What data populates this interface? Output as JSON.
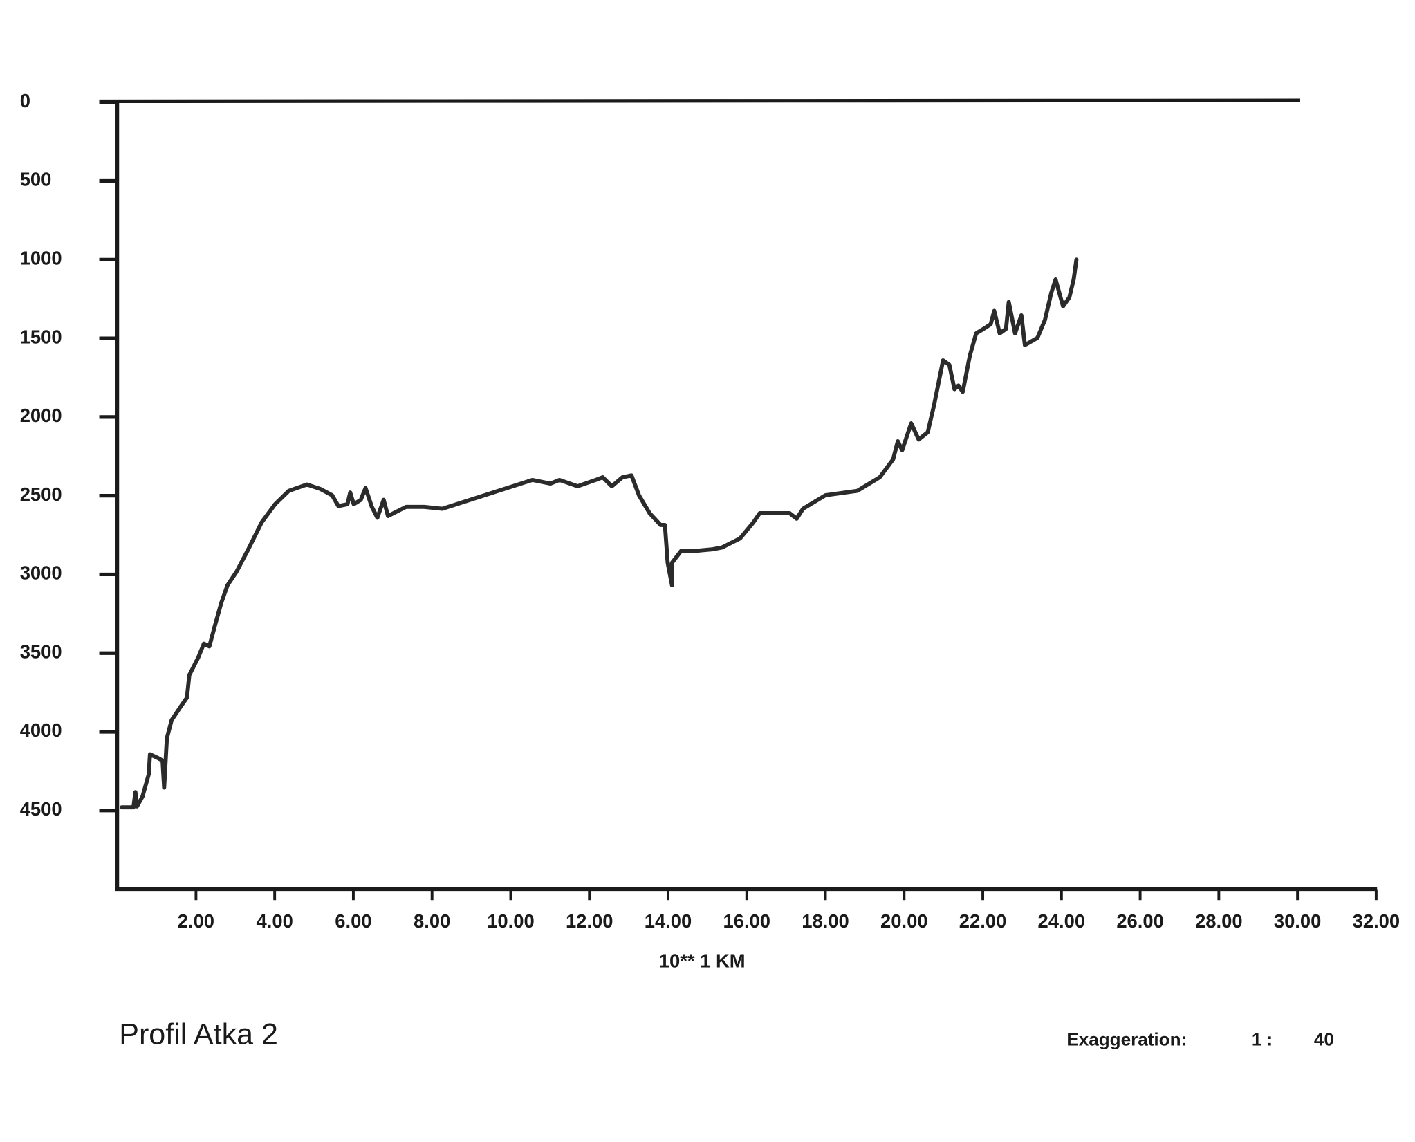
{
  "chart_data": {
    "type": "line",
    "title": "Profil Atka 2",
    "xlabel": "10** 1    KM",
    "annotation": {
      "label": "Exaggeration:",
      "ratio": "1 :",
      "factor": "40"
    },
    "color": "#2b2b2b",
    "y_inverted": true,
    "xlim": [
      0,
      32
    ],
    "ylim": [
      0,
      5000
    ],
    "xticks": [
      {
        "value": 2,
        "label": "2.00"
      },
      {
        "value": 4,
        "label": "4.00"
      },
      {
        "value": 6,
        "label": "6.00"
      },
      {
        "value": 8,
        "label": "8.00"
      },
      {
        "value": 10,
        "label": "10.00"
      },
      {
        "value": 12,
        "label": "12.00"
      },
      {
        "value": 14,
        "label": "14.00"
      },
      {
        "value": 16,
        "label": "16.00"
      },
      {
        "value": 18,
        "label": "18.00"
      },
      {
        "value": 20,
        "label": "20.00"
      },
      {
        "value": 22,
        "label": "22.00"
      },
      {
        "value": 24,
        "label": "24.00"
      },
      {
        "value": 26,
        "label": "26.00"
      },
      {
        "value": 28,
        "label": "28.00"
      },
      {
        "value": 30,
        "label": "30.00"
      },
      {
        "value": 32,
        "label": "32.00"
      }
    ],
    "yticks": [
      0,
      500,
      1000,
      1500,
      2000,
      2500,
      3000,
      3500,
      4000,
      4500
    ],
    "x": [
      0.11,
      0.41,
      0.46,
      0.5,
      0.64,
      0.8,
      0.83,
      1.03,
      1.15,
      1.19,
      1.26,
      1.38,
      1.61,
      1.77,
      1.83,
      2.06,
      2.2,
      2.34,
      2.48,
      2.64,
      2.8,
      3.03,
      3.33,
      3.67,
      4.01,
      4.36,
      4.82,
      5.16,
      5.46,
      5.62,
      5.85,
      5.92,
      6.01,
      6.19,
      6.31,
      6.47,
      6.61,
      6.77,
      6.88,
      7.34,
      7.8,
      8.26,
      10.55,
      11.01,
      11.24,
      11.7,
      12.16,
      12.34,
      12.57,
      12.84,
      13.07,
      13.26,
      13.53,
      13.81,
      13.92,
      13.99,
      14.1,
      14.1,
      14.33,
      14.68,
      15.14,
      15.37,
      15.83,
      16.17,
      16.33,
      16.74,
      17.09,
      17.27,
      17.43,
      18.0,
      18.81,
      19.38,
      19.72,
      19.84,
      19.95,
      20.18,
      20.37,
      20.6,
      20.76,
      20.99,
      21.15,
      21.28,
      21.38,
      21.49,
      21.67,
      21.83,
      22.02,
      22.2,
      22.29,
      22.43,
      22.59,
      22.66,
      22.82,
      22.98,
      23.07,
      23.39,
      23.58,
      23.74,
      23.85,
      24.04,
      24.2,
      24.31,
      24.38
    ],
    "values": [
      4480,
      4480,
      4383,
      4474,
      4411,
      4269,
      4143,
      4166,
      4183,
      4354,
      4040,
      3926,
      3840,
      3783,
      3640,
      3526,
      3440,
      3457,
      3326,
      3183,
      3069,
      2983,
      2840,
      2669,
      2554,
      2469,
      2429,
      2457,
      2497,
      2566,
      2554,
      2480,
      2554,
      2526,
      2451,
      2571,
      2640,
      2526,
      2629,
      2571,
      2571,
      2583,
      2400,
      2423,
      2400,
      2440,
      2400,
      2383,
      2440,
      2383,
      2371,
      2497,
      2611,
      2686,
      2686,
      2926,
      3069,
      2926,
      2851,
      2851,
      2840,
      2829,
      2771,
      2669,
      2611,
      2611,
      2611,
      2646,
      2583,
      2497,
      2469,
      2383,
      2269,
      2154,
      2211,
      2040,
      2143,
      2097,
      1926,
      1640,
      1669,
      1823,
      1800,
      1840,
      1611,
      1469,
      1440,
      1411,
      1326,
      1469,
      1440,
      1269,
      1469,
      1354,
      1543,
      1497,
      1383,
      1211,
      1126,
      1297,
      1240,
      1126,
      1000
    ]
  }
}
